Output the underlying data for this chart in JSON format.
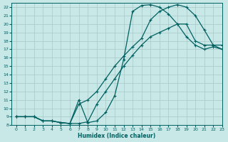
{
  "xlabel": "Humidex (Indice chaleur)",
  "bg_color": "#c8e8e8",
  "grid_color": "#a8c8c8",
  "line_color": "#006060",
  "xlim": [
    -0.5,
    23
  ],
  "ylim": [
    8,
    22.5
  ],
  "xticks": [
    0,
    1,
    2,
    3,
    4,
    5,
    6,
    7,
    8,
    9,
    10,
    11,
    12,
    13,
    14,
    15,
    16,
    17,
    18,
    19,
    20,
    21,
    22,
    23
  ],
  "yticks": [
    8,
    9,
    10,
    11,
    12,
    13,
    14,
    15,
    16,
    17,
    18,
    19,
    20,
    21,
    22
  ],
  "curve1_x": [
    0,
    1,
    2,
    3,
    4,
    5,
    6,
    7,
    8,
    9,
    10,
    11,
    12,
    13,
    14,
    15,
    16,
    17,
    18,
    19,
    20,
    21,
    22,
    23
  ],
  "curve1_y": [
    9,
    9,
    9,
    8.5,
    8.5,
    8.3,
    8.2,
    8.2,
    8.4,
    10.5,
    12,
    13.5,
    15,
    16.3,
    17.5,
    18.5,
    19,
    19.5,
    20,
    20,
    18,
    17.5,
    17.5,
    17
  ],
  "curve2_x": [
    0,
    1,
    2,
    3,
    4,
    5,
    6,
    7,
    8,
    9,
    10,
    11,
    12,
    13,
    14,
    15,
    16,
    17,
    18,
    19,
    20,
    21,
    22,
    23
  ],
  "curve2_y": [
    9,
    9,
    9,
    8.5,
    8.5,
    8.3,
    8.2,
    10.5,
    11,
    12,
    13.5,
    15,
    16.2,
    17.3,
    18.3,
    20.5,
    21.5,
    22,
    22.3,
    22,
    21,
    19.3,
    17.5,
    17.5
  ],
  "curve3_x": [
    0,
    1,
    2,
    3,
    4,
    5,
    6,
    7,
    8,
    9,
    10,
    11,
    12,
    13,
    14,
    15,
    16,
    17,
    18,
    19,
    20,
    21,
    22,
    23
  ],
  "curve3_y": [
    9,
    9,
    9,
    8.5,
    8.5,
    8.3,
    8.2,
    11,
    8.3,
    8.5,
    9.5,
    11.5,
    15.8,
    21.5,
    22.2,
    22.3,
    22,
    21.2,
    20,
    18.5,
    17.5,
    17,
    17.3,
    17
  ]
}
